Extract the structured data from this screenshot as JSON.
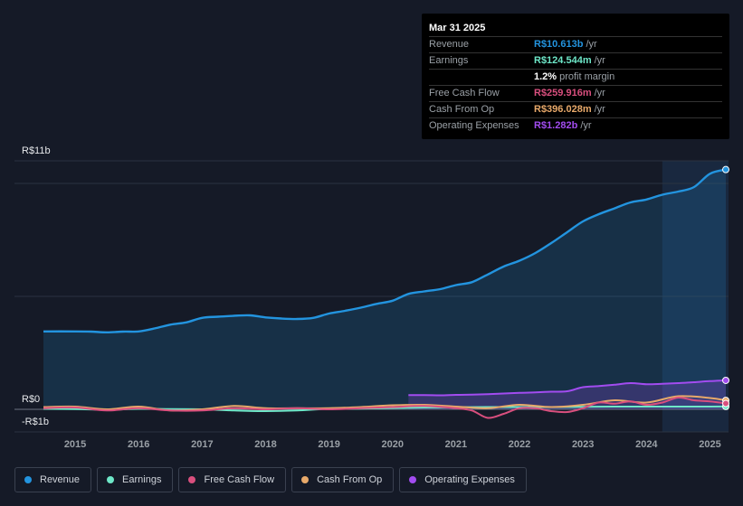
{
  "tooltip": {
    "date": "Mar 31 2025",
    "rows": [
      {
        "label": "Revenue",
        "value": "R$10.613b",
        "unit": "/yr",
        "color": "#2394df"
      },
      {
        "label": "Earnings",
        "value": "R$124.544m",
        "unit": "/yr",
        "color": "#6ee7c8"
      },
      {
        "label": "",
        "value": "1.2%",
        "unit": "profit margin",
        "color": "#ffffff"
      },
      {
        "label": "Free Cash Flow",
        "value": "R$259.916m",
        "unit": "/yr",
        "color": "#d94f7e"
      },
      {
        "label": "Cash From Op",
        "value": "R$396.028m",
        "unit": "/yr",
        "color": "#e8a96a"
      },
      {
        "label": "Operating Expenses",
        "value": "R$1.282b",
        "unit": "/yr",
        "color": "#a24cf0"
      }
    ]
  },
  "legend": [
    {
      "label": "Revenue",
      "color": "#2394df"
    },
    {
      "label": "Earnings",
      "color": "#6ee7c8"
    },
    {
      "label": "Free Cash Flow",
      "color": "#d94f7e"
    },
    {
      "label": "Cash From Op",
      "color": "#e8a96a"
    },
    {
      "label": "Operating Expenses",
      "color": "#a24cf0"
    }
  ],
  "chart_data": {
    "type": "line",
    "title": "",
    "ylabels": {
      "top": "R$11b",
      "zero": "R$0",
      "bottom": "-R$1b"
    },
    "ylim": [
      -1,
      11
    ],
    "xlim": [
      2014.5,
      2025.25
    ],
    "x_ticks": [
      "2015",
      "2016",
      "2017",
      "2018",
      "2019",
      "2020",
      "2021",
      "2022",
      "2023",
      "2024",
      "2025"
    ],
    "x_tick_values": [
      2015,
      2016,
      2017,
      2018,
      2019,
      2020,
      2021,
      2022,
      2023,
      2024,
      2025
    ],
    "highlight_from": 2024.25,
    "series": [
      {
        "name": "Revenue",
        "color": "#2394df",
        "area": true,
        "x": [
          2014.5,
          2015,
          2015.25,
          2015.5,
          2015.75,
          2016,
          2016.25,
          2016.5,
          2016.75,
          2017,
          2017.25,
          2017.5,
          2017.75,
          2018,
          2018.25,
          2018.5,
          2018.75,
          2019,
          2019.25,
          2019.5,
          2019.75,
          2020,
          2020.25,
          2020.5,
          2020.75,
          2021,
          2021.25,
          2021.5,
          2021.75,
          2022,
          2022.25,
          2022.5,
          2022.75,
          2023,
          2023.25,
          2023.5,
          2023.75,
          2024,
          2024.25,
          2024.5,
          2024.75,
          2025,
          2025.25
        ],
        "y": [
          3.45,
          3.45,
          3.44,
          3.41,
          3.44,
          3.45,
          3.58,
          3.75,
          3.85,
          4.05,
          4.1,
          4.14,
          4.16,
          4.07,
          4.02,
          4.0,
          4.05,
          4.24,
          4.36,
          4.5,
          4.67,
          4.81,
          5.11,
          5.22,
          5.32,
          5.5,
          5.63,
          5.97,
          6.32,
          6.58,
          6.92,
          7.36,
          7.84,
          8.32,
          8.64,
          8.9,
          9.16,
          9.29,
          9.5,
          9.64,
          9.84,
          10.43,
          10.613
        ]
      },
      {
        "name": "Earnings",
        "color": "#6ee7c8",
        "area": false,
        "x": [
          2014.5,
          2015,
          2015.5,
          2016,
          2016.5,
          2017,
          2017.5,
          2018,
          2018.5,
          2019,
          2019.5,
          2020,
          2020.5,
          2021,
          2021.5,
          2022,
          2022.5,
          2023,
          2023.5,
          2024,
          2024.5,
          2025,
          2025.25
        ],
        "y": [
          0.02,
          0.01,
          -0.02,
          0.02,
          0.01,
          0.0,
          -0.05,
          -0.08,
          -0.05,
          0.02,
          0.03,
          0.06,
          0.08,
          0.09,
          0.1,
          0.1,
          0.1,
          0.11,
          0.12,
          0.12,
          0.12,
          0.12,
          0.1245
        ]
      },
      {
        "name": "Free Cash Flow",
        "color": "#d94f7e",
        "area": false,
        "x": [
          2014.5,
          2015,
          2015.5,
          2016,
          2016.5,
          2017,
          2017.5,
          2018,
          2018.5,
          2019,
          2019.5,
          2020,
          2020.5,
          2021,
          2021.25,
          2021.5,
          2021.75,
          2022,
          2022.25,
          2022.5,
          2022.75,
          2023,
          2023.25,
          2023.5,
          2023.75,
          2024,
          2024.25,
          2024.5,
          2024.75,
          2025,
          2025.25
        ],
        "y": [
          0.05,
          0.08,
          -0.05,
          0.05,
          -0.05,
          -0.05,
          0.05,
          0.0,
          0.05,
          0.0,
          0.05,
          0.1,
          0.15,
          0.05,
          -0.05,
          -0.38,
          -0.2,
          0.05,
          0.05,
          -0.08,
          -0.12,
          0.05,
          0.3,
          0.25,
          0.35,
          0.2,
          0.3,
          0.52,
          0.4,
          0.35,
          0.26
        ]
      },
      {
        "name": "Cash From Op",
        "color": "#e8a96a",
        "area": false,
        "x": [
          2014.5,
          2015,
          2015.5,
          2016,
          2016.5,
          2017,
          2017.5,
          2018,
          2018.5,
          2019,
          2019.5,
          2020,
          2020.5,
          2021,
          2021.5,
          2022,
          2022.5,
          2023,
          2023.5,
          2024,
          2024.5,
          2025,
          2025.25
        ],
        "y": [
          0.1,
          0.12,
          0.0,
          0.12,
          -0.05,
          0.0,
          0.15,
          0.05,
          0.05,
          0.05,
          0.1,
          0.18,
          0.2,
          0.12,
          0.05,
          0.2,
          0.1,
          0.2,
          0.4,
          0.3,
          0.58,
          0.5,
          0.396
        ]
      },
      {
        "name": "Operating Expenses",
        "color": "#a24cf0",
        "area": true,
        "x": [
          2020.25,
          2020.5,
          2020.75,
          2021,
          2021.25,
          2021.5,
          2021.75,
          2022,
          2022.25,
          2022.5,
          2022.75,
          2023,
          2023.25,
          2023.5,
          2023.75,
          2024,
          2024.25,
          2024.5,
          2024.75,
          2025,
          2025.25
        ],
        "y": [
          0.63,
          0.63,
          0.62,
          0.64,
          0.65,
          0.67,
          0.7,
          0.73,
          0.75,
          0.78,
          0.8,
          0.98,
          1.03,
          1.09,
          1.16,
          1.11,
          1.13,
          1.16,
          1.2,
          1.25,
          1.282
        ]
      }
    ]
  }
}
